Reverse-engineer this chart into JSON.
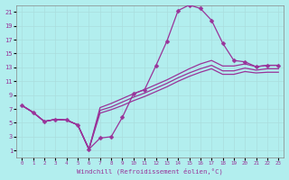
{
  "xlabel": "Windchill (Refroidissement éolien,°C)",
  "bg_color": "#b2eeee",
  "grid_color": "#ccffff",
  "line_color": "#993399",
  "marker": "D",
  "markersize": 2.5,
  "xlim": [
    -0.5,
    23.5
  ],
  "ylim": [
    0,
    22
  ],
  "xticks": [
    0,
    1,
    2,
    3,
    4,
    5,
    6,
    7,
    8,
    9,
    10,
    11,
    12,
    13,
    14,
    15,
    16,
    17,
    18,
    19,
    20,
    21,
    22,
    23
  ],
  "yticks": [
    1,
    3,
    5,
    7,
    9,
    11,
    13,
    15,
    17,
    19,
    21
  ],
  "line1_x": [
    0,
    1,
    2,
    3,
    4,
    5,
    6,
    7,
    8,
    9,
    10,
    11,
    12,
    13,
    14,
    15,
    16,
    17,
    18,
    19,
    20,
    21,
    22,
    23
  ],
  "line1_y": [
    7.5,
    6.5,
    5.2,
    5.5,
    5.4,
    4.7,
    1.2,
    2.8,
    3.0,
    5.8,
    9.2,
    9.8,
    13.2,
    16.8,
    21.2,
    22.0,
    21.5,
    19.8,
    16.5,
    14.0,
    13.8,
    13.1,
    13.3,
    13.3
  ],
  "line2_x": [
    0,
    1,
    2,
    3,
    4,
    5,
    6,
    7,
    8,
    9,
    10,
    11,
    12,
    13,
    14,
    15,
    16,
    17,
    18,
    19,
    20,
    21,
    22,
    23
  ],
  "line2_y": [
    7.5,
    6.5,
    5.2,
    5.5,
    5.4,
    4.7,
    1.2,
    7.2,
    7.8,
    8.5,
    9.2,
    9.8,
    10.5,
    11.2,
    12.0,
    12.8,
    13.5,
    14.0,
    13.2,
    13.2,
    13.5,
    13.1,
    13.3,
    13.3
  ],
  "line3_x": [
    0,
    1,
    2,
    3,
    4,
    5,
    6,
    7,
    8,
    9,
    10,
    11,
    12,
    13,
    14,
    15,
    16,
    17,
    18,
    19,
    20,
    21,
    22,
    23
  ],
  "line3_y": [
    7.5,
    6.5,
    5.2,
    5.5,
    5.4,
    4.7,
    1.2,
    6.8,
    7.3,
    8.0,
    8.7,
    9.3,
    10.0,
    10.7,
    11.5,
    12.2,
    12.8,
    13.3,
    12.5,
    12.5,
    12.9,
    12.6,
    12.8,
    12.8
  ],
  "line4_x": [
    0,
    1,
    2,
    3,
    4,
    5,
    6,
    7,
    8,
    9,
    10,
    11,
    12,
    13,
    14,
    15,
    16,
    17,
    18,
    19,
    20,
    21,
    22,
    23
  ],
  "line4_y": [
    7.5,
    6.5,
    5.2,
    5.5,
    5.4,
    4.7,
    1.2,
    6.4,
    6.9,
    7.5,
    8.2,
    8.8,
    9.5,
    10.2,
    11.0,
    11.7,
    12.3,
    12.8,
    12.0,
    12.0,
    12.4,
    12.2,
    12.3,
    12.3
  ]
}
